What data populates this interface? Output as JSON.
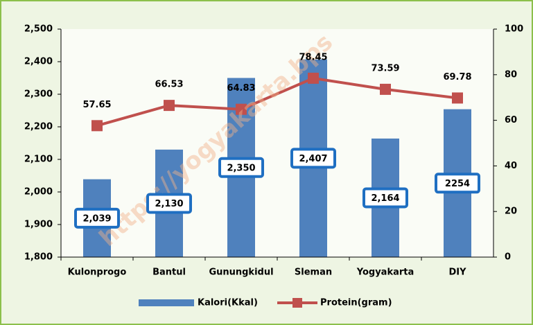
{
  "chart_data": {
    "type": "bar_line",
    "categories": [
      "Kulonprogo",
      "Bantul",
      "Gunungkidul",
      "Sleman",
      "Yogyakarta",
      "DIY"
    ],
    "series": [
      {
        "name": "Kalori(Kkal)",
        "color": "#4f81bd",
        "type": "bar",
        "values": [
          2039,
          2130,
          2350,
          2407,
          2164,
          2254
        ],
        "value_labels": [
          "2,039",
          "2,130",
          "2,350",
          "2,407",
          "2,164",
          "2254"
        ]
      },
      {
        "name": "Protein(gram)",
        "color": "#c0504d",
        "type": "line",
        "axis": "y2",
        "values": [
          57.65,
          66.53,
          64.83,
          78.45,
          73.59,
          69.78
        ]
      }
    ],
    "ylim": [
      1800,
      2500
    ],
    "yticks": [
      {
        "value": 1800,
        "label": "1,800"
      },
      {
        "value": 1900,
        "label": "1,900"
      },
      {
        "value": 2000,
        "label": "2,000"
      },
      {
        "value": 2100,
        "label": "2,100"
      },
      {
        "value": 2200,
        "label": "2,200"
      },
      {
        "value": 2300,
        "label": "2,300"
      },
      {
        "value": 2400,
        "label": "2,400"
      },
      {
        "value": 2500,
        "label": "2,500"
      }
    ],
    "y2lim": [
      0,
      100
    ],
    "y2ticks": [
      0,
      20,
      40,
      60,
      80,
      100
    ],
    "legend": "bottom",
    "watermark": "https://yogyakarta.bps"
  }
}
